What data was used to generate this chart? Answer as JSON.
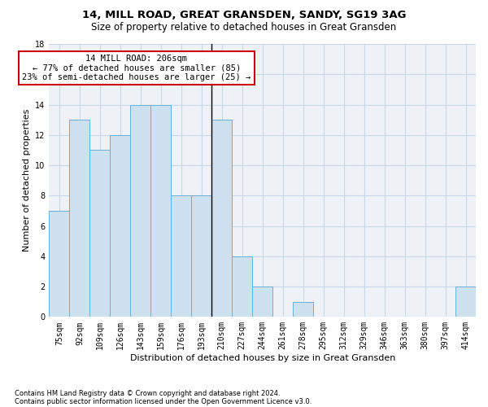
{
  "title1": "14, MILL ROAD, GREAT GRANSDEN, SANDY, SG19 3AG",
  "title2": "Size of property relative to detached houses in Great Gransden",
  "xlabel": "Distribution of detached houses by size in Great Gransden",
  "ylabel": "Number of detached properties",
  "footnote1": "Contains HM Land Registry data © Crown copyright and database right 2024.",
  "footnote2": "Contains public sector information licensed under the Open Government Licence v3.0.",
  "bar_color": "#cce0f0",
  "bar_edge_color": "#6aaed6",
  "categories": [
    "75sqm",
    "92sqm",
    "109sqm",
    "126sqm",
    "143sqm",
    "159sqm",
    "176sqm",
    "193sqm",
    "210sqm",
    "227sqm",
    "244sqm",
    "261sqm",
    "278sqm",
    "295sqm",
    "312sqm",
    "329sqm",
    "346sqm",
    "363sqm",
    "380sqm",
    "397sqm",
    "414sqm"
  ],
  "values": [
    7,
    13,
    11,
    12,
    14,
    14,
    8,
    8,
    13,
    4,
    2,
    0,
    1,
    0,
    0,
    0,
    0,
    0,
    0,
    0,
    2
  ],
  "ylim": [
    0,
    18
  ],
  "yticks": [
    0,
    2,
    4,
    6,
    8,
    10,
    12,
    14,
    16,
    18
  ],
  "property_line_idx": 8,
  "annotation_line1": "14 MILL ROAD: 206sqm",
  "annotation_line2": "← 77% of detached houses are smaller (85)",
  "annotation_line3": "23% of semi-detached houses are larger (25) →",
  "annotation_box_color": "#cc0000",
  "grid_color": "#c8d8e8",
  "background_color": "#eef2f7",
  "bar_width": 1.0,
  "title1_fontsize": 9.5,
  "title2_fontsize": 8.5,
  "ylabel_fontsize": 8,
  "xlabel_fontsize": 8,
  "tick_fontsize": 7,
  "annot_fontsize": 7.5,
  "footnote_fontsize": 6
}
